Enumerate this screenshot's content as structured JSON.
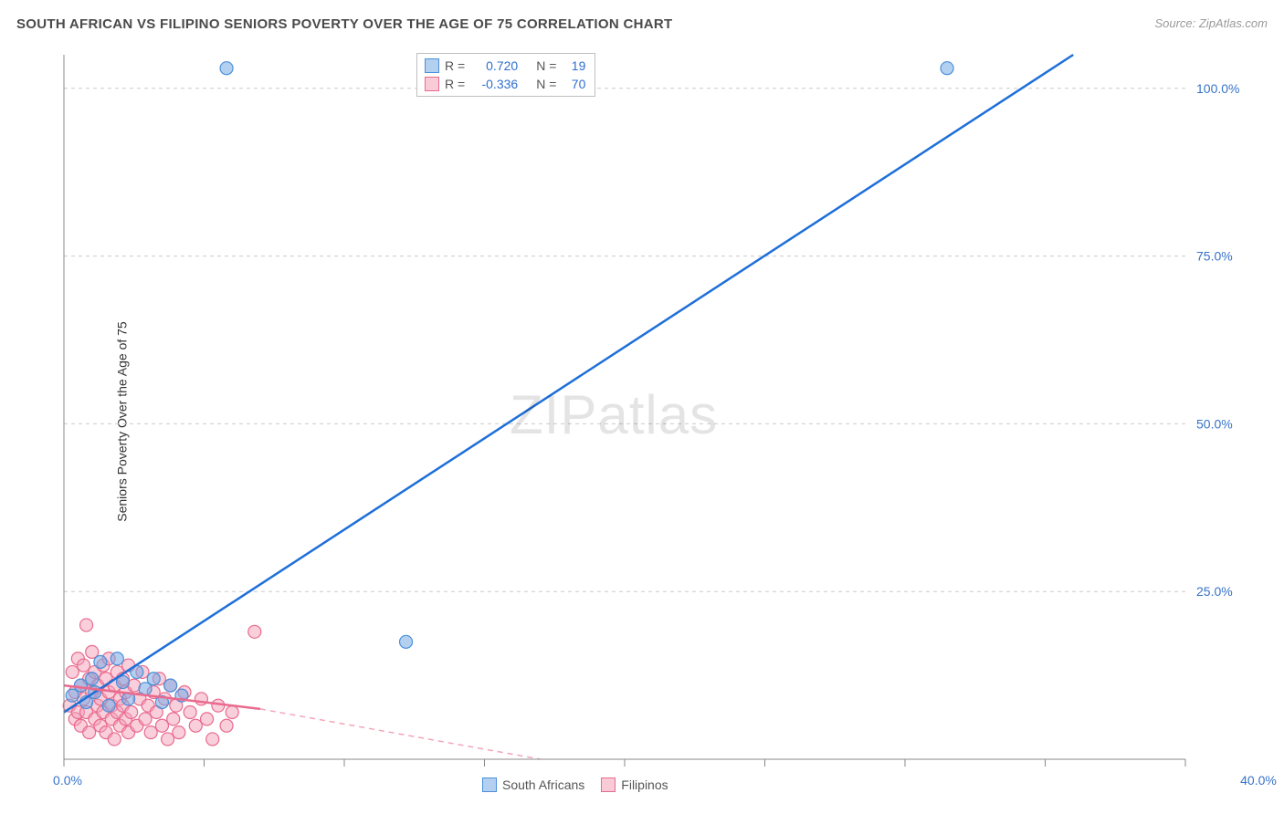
{
  "header": {
    "title": "SOUTH AFRICAN VS FILIPINO SENIORS POVERTY OVER THE AGE OF 75 CORRELATION CHART",
    "source_label": "Source: ",
    "source_value": "ZipAtlas.com"
  },
  "y_axis_label": "Seniors Poverty Over the Age of 75",
  "watermark": {
    "part1": "ZIP",
    "part2": "atlas"
  },
  "chart": {
    "type": "scatter",
    "background_color": "#ffffff",
    "grid_color": "#cccccc",
    "axis_color": "#888888",
    "tick_label_color": "#3773c8",
    "x": {
      "min": 0,
      "max": 40,
      "ticks": [
        0,
        5,
        10,
        15,
        20,
        25,
        30,
        35,
        40
      ],
      "labeled_ticks": [
        {
          "v": 0,
          "t": "0.0%"
        },
        {
          "v": 40,
          "t": "40.0%"
        }
      ]
    },
    "y": {
      "min": 0,
      "max": 105,
      "ticks": [
        25,
        50,
        75,
        100
      ],
      "labels": [
        "25.0%",
        "50.0%",
        "75.0%",
        "100.0%"
      ]
    },
    "series": [
      {
        "key": "south_africans",
        "label": "South Africans",
        "color_fill": "rgba(118,170,230,0.55)",
        "color_stroke": "#4a90d9",
        "marker_radius": 7,
        "stats": {
          "R": "0.720",
          "N": "19"
        },
        "trend": {
          "color": "#1e6fd9",
          "width": 2.5,
          "x1": 0,
          "y1": 7,
          "x2": 36,
          "y2": 105
        },
        "points": [
          [
            0.3,
            9.5
          ],
          [
            0.6,
            11
          ],
          [
            0.8,
            8.5
          ],
          [
            1.0,
            12
          ],
          [
            1.1,
            10
          ],
          [
            1.3,
            14.5
          ],
          [
            1.6,
            8
          ],
          [
            1.9,
            15
          ],
          [
            2.1,
            11.5
          ],
          [
            2.3,
            9
          ],
          [
            2.6,
            13
          ],
          [
            2.9,
            10.5
          ],
          [
            3.2,
            12
          ],
          [
            3.5,
            8.5
          ],
          [
            3.8,
            11
          ],
          [
            4.2,
            9.5
          ],
          [
            5.8,
            103
          ],
          [
            12.2,
            17.5
          ],
          [
            31.5,
            103
          ]
        ]
      },
      {
        "key": "filipinos",
        "label": "Filipinos",
        "color_fill": "rgba(244,160,185,0.5)",
        "color_stroke": "#e96a8d",
        "marker_radius": 7,
        "stats": {
          "R": "-0.336",
          "N": "70"
        },
        "trend_solid": {
          "color": "#e96a8d",
          "width": 2.5,
          "x1": 0,
          "y1": 11,
          "x2": 7,
          "y2": 7.5
        },
        "trend_dash": {
          "color": "#f2a5b8",
          "width": 1.5,
          "x1": 7,
          "y1": 7.5,
          "x2": 17,
          "y2": 0
        },
        "points": [
          [
            0.2,
            8
          ],
          [
            0.3,
            13
          ],
          [
            0.4,
            6
          ],
          [
            0.4,
            10
          ],
          [
            0.5,
            15
          ],
          [
            0.5,
            7
          ],
          [
            0.6,
            11
          ],
          [
            0.6,
            5
          ],
          [
            0.7,
            9
          ],
          [
            0.7,
            14
          ],
          [
            0.8,
            20
          ],
          [
            0.8,
            7
          ],
          [
            0.9,
            12
          ],
          [
            0.9,
            4
          ],
          [
            1.0,
            10
          ],
          [
            1.0,
            16
          ],
          [
            1.1,
            6
          ],
          [
            1.1,
            13
          ],
          [
            1.2,
            8
          ],
          [
            1.2,
            11
          ],
          [
            1.3,
            5
          ],
          [
            1.3,
            9
          ],
          [
            1.4,
            14
          ],
          [
            1.4,
            7
          ],
          [
            1.5,
            12
          ],
          [
            1.5,
            4
          ],
          [
            1.6,
            10
          ],
          [
            1.6,
            15
          ],
          [
            1.7,
            6
          ],
          [
            1.7,
            8
          ],
          [
            1.8,
            11
          ],
          [
            1.8,
            3
          ],
          [
            1.9,
            13
          ],
          [
            1.9,
            7
          ],
          [
            2.0,
            9
          ],
          [
            2.0,
            5
          ],
          [
            2.1,
            12
          ],
          [
            2.1,
            8
          ],
          [
            2.2,
            6
          ],
          [
            2.2,
            10
          ],
          [
            2.3,
            4
          ],
          [
            2.3,
            14
          ],
          [
            2.4,
            7
          ],
          [
            2.5,
            11
          ],
          [
            2.6,
            5
          ],
          [
            2.7,
            9
          ],
          [
            2.8,
            13
          ],
          [
            2.9,
            6
          ],
          [
            3.0,
            8
          ],
          [
            3.1,
            4
          ],
          [
            3.2,
            10
          ],
          [
            3.3,
            7
          ],
          [
            3.4,
            12
          ],
          [
            3.5,
            5
          ],
          [
            3.6,
            9
          ],
          [
            3.7,
            3
          ],
          [
            3.8,
            11
          ],
          [
            3.9,
            6
          ],
          [
            4.0,
            8
          ],
          [
            4.1,
            4
          ],
          [
            4.3,
            10
          ],
          [
            4.5,
            7
          ],
          [
            4.7,
            5
          ],
          [
            4.9,
            9
          ],
          [
            5.1,
            6
          ],
          [
            5.3,
            3
          ],
          [
            5.5,
            8
          ],
          [
            5.8,
            5
          ],
          [
            6.0,
            7
          ],
          [
            6.8,
            19
          ]
        ]
      }
    ]
  },
  "stats_legend": {
    "r_label": "R =",
    "n_label": "N ="
  }
}
